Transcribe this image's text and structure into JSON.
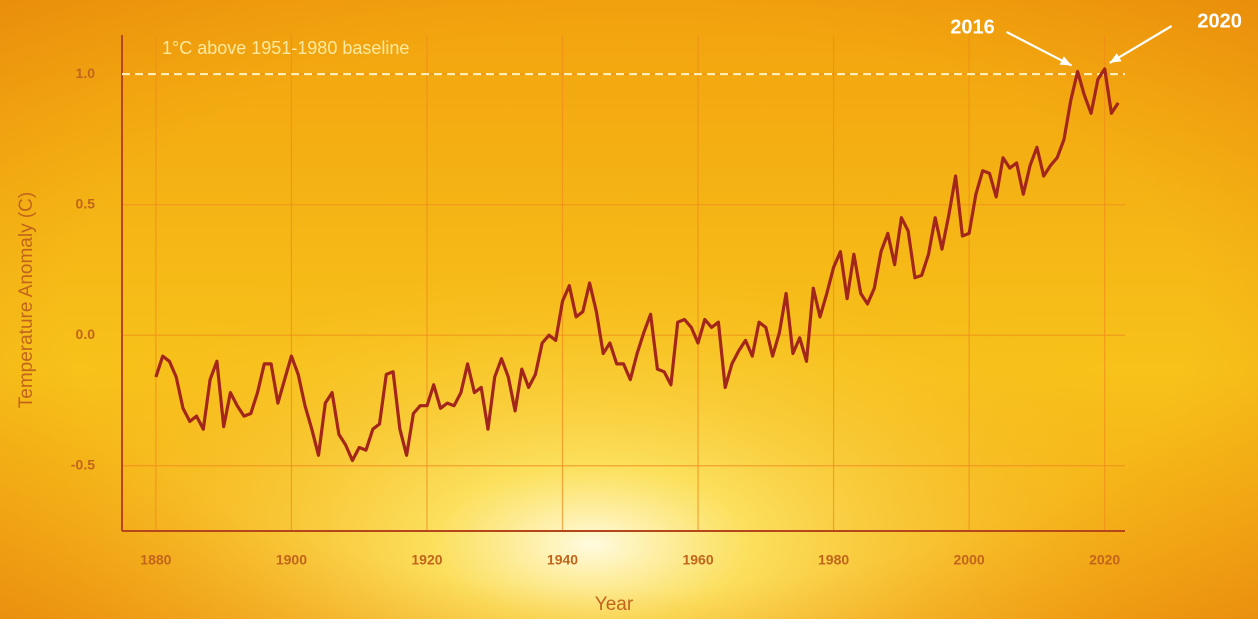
{
  "chart_data": {
    "type": "line",
    "y_label": "Temperature Anomaly (C)",
    "x_label": "Year",
    "x": [
      1880,
      1881,
      1882,
      1883,
      1884,
      1885,
      1886,
      1887,
      1888,
      1889,
      1890,
      1891,
      1892,
      1893,
      1894,
      1895,
      1896,
      1897,
      1898,
      1899,
      1900,
      1901,
      1902,
      1903,
      1904,
      1905,
      1906,
      1907,
      1908,
      1909,
      1910,
      1911,
      1912,
      1913,
      1914,
      1915,
      1916,
      1917,
      1918,
      1919,
      1920,
      1921,
      1922,
      1923,
      1924,
      1925,
      1926,
      1927,
      1928,
      1929,
      1930,
      1931,
      1932,
      1933,
      1934,
      1935,
      1936,
      1937,
      1938,
      1939,
      1940,
      1941,
      1942,
      1943,
      1944,
      1945,
      1946,
      1947,
      1948,
      1949,
      1950,
      1951,
      1952,
      1953,
      1954,
      1955,
      1956,
      1957,
      1958,
      1959,
      1960,
      1961,
      1962,
      1963,
      1964,
      1965,
      1966,
      1967,
      1968,
      1969,
      1970,
      1971,
      1972,
      1973,
      1974,
      1975,
      1976,
      1977,
      1978,
      1979,
      1980,
      1981,
      1982,
      1983,
      1984,
      1985,
      1986,
      1987,
      1988,
      1989,
      1990,
      1991,
      1992,
      1993,
      1994,
      1995,
      1996,
      1997,
      1998,
      1999,
      2000,
      2001,
      2002,
      2003,
      2004,
      2005,
      2006,
      2007,
      2008,
      2009,
      2010,
      2011,
      2012,
      2013,
      2014,
      2015,
      2016,
      2017,
      2018,
      2019,
      2020,
      2021,
      2022
    ],
    "series": [
      {
        "color": "#a3261a",
        "values": [
          -0.16,
          -0.08,
          -0.1,
          -0.16,
          -0.28,
          -0.33,
          -0.31,
          -0.36,
          -0.17,
          -0.1,
          -0.35,
          -0.22,
          -0.27,
          -0.31,
          -0.3,
          -0.22,
          -0.11,
          -0.11,
          -0.26,
          -0.17,
          -0.08,
          -0.15,
          -0.27,
          -0.36,
          -0.46,
          -0.26,
          -0.22,
          -0.38,
          -0.42,
          -0.48,
          -0.43,
          -0.44,
          -0.36,
          -0.34,
          -0.15,
          -0.14,
          -0.36,
          -0.46,
          -0.3,
          -0.27,
          -0.27,
          -0.19,
          -0.28,
          -0.26,
          -0.27,
          -0.22,
          -0.11,
          -0.22,
          -0.2,
          -0.36,
          -0.16,
          -0.09,
          -0.16,
          -0.29,
          -0.13,
          -0.2,
          -0.15,
          -0.03,
          0.0,
          -0.02,
          0.13,
          0.19,
          0.07,
          0.09,
          0.2,
          0.09,
          -0.07,
          -0.03,
          -0.11,
          -0.11,
          -0.17,
          -0.07,
          0.01,
          0.08,
          -0.13,
          -0.14,
          -0.19,
          0.05,
          0.06,
          0.03,
          -0.03,
          0.06,
          0.03,
          0.05,
          -0.2,
          -0.11,
          -0.06,
          -0.02,
          -0.08,
          0.05,
          0.03,
          -0.08,
          0.01,
          0.16,
          -0.07,
          -0.01,
          -0.1,
          0.18,
          0.07,
          0.16,
          0.26,
          0.32,
          0.14,
          0.31,
          0.16,
          0.12,
          0.18,
          0.32,
          0.39,
          0.27,
          0.45,
          0.4,
          0.22,
          0.23,
          0.31,
          0.45,
          0.33,
          0.46,
          0.61,
          0.38,
          0.39,
          0.54,
          0.63,
          0.62,
          0.53,
          0.68,
          0.64,
          0.66,
          0.54,
          0.65,
          0.72,
          0.61,
          0.65,
          0.68,
          0.75,
          0.9,
          1.01,
          0.92,
          0.85,
          0.98,
          1.02,
          0.85,
          0.89
        ]
      }
    ],
    "xlim": [
      1875,
      2023
    ],
    "ylim": [
      -0.75,
      1.15
    ],
    "xticks": [
      1880,
      1900,
      1920,
      1940,
      1960,
      1980,
      2000,
      2020
    ],
    "yticks": [
      -0.5,
      {
        "value": 0,
        "label": "0.0"
      },
      0.5,
      {
        "value": 1,
        "label": "1.0"
      }
    ],
    "grid": true,
    "reference_line": {
      "value": 1,
      "label": "1°C above 1951-1980 baseline"
    },
    "annotations": [
      {
        "text": "2016",
        "x": 2016
      },
      {
        "text": "2020",
        "x": 2020
      }
    ]
  }
}
